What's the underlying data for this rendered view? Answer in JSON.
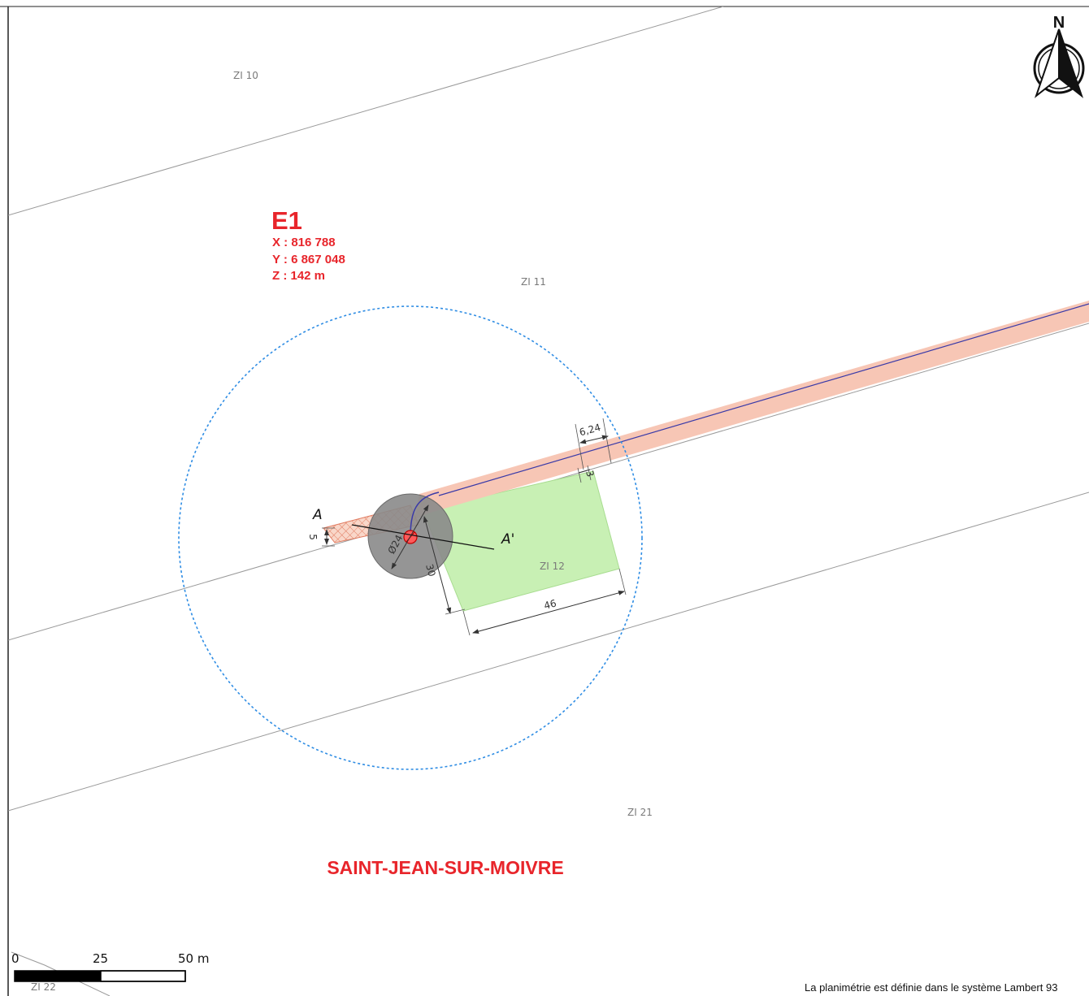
{
  "turbine": {
    "id": "E1",
    "x_label": "X : 816 788",
    "y_label": "Y : 6 867 048",
    "z_label": "Z : 142 m",
    "color": "#e8252b"
  },
  "parcels": {
    "zi10": "ZI 10",
    "zi11": "ZI 11",
    "zi12": "ZI 12",
    "zi21": "ZI 21",
    "zi22": "ZI 22"
  },
  "commune": "SAINT-JEAN-SUR-MOIVRE",
  "dimensions": {
    "access_width": "5",
    "foundation_diameter": "Ø24",
    "platform_depth": "30",
    "platform_width": "46",
    "road_width": "6,24",
    "shoulder": "3"
  },
  "section": {
    "start": "A",
    "end": "A'"
  },
  "north_arrow": {
    "letter": "N"
  },
  "scale_bar": {
    "tick_0": "0",
    "tick_25": "25",
    "tick_50": "50 m"
  },
  "footer_note": "La planimétrie est définie dans le système Lambert 93",
  "colors": {
    "road_fill": "#f7c6b5",
    "platform_fill": "#c8f0b4",
    "foundation_fill": "#8a8a8a",
    "survol_circle": "#2f8de4",
    "cable": "#3a3aa8",
    "label_red": "#e8252b"
  }
}
